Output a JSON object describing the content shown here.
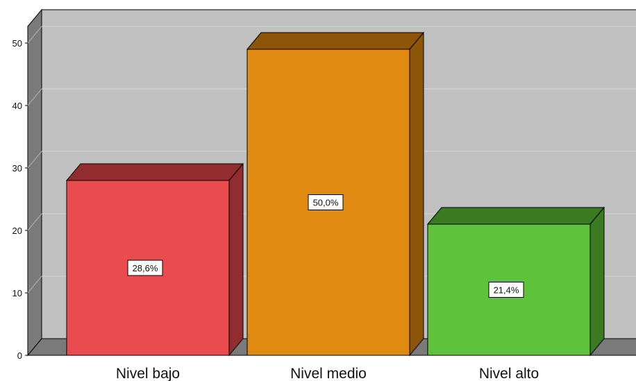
{
  "chart_data": {
    "type": "bar",
    "categories": [
      "Nivel bajo",
      "Nivel medio",
      "Nivel alto"
    ],
    "values": [
      28,
      49,
      21
    ],
    "data_labels": [
      "28,6%",
      "50,0%",
      "21,4%"
    ],
    "y_ticks": [
      "0",
      "10",
      "20",
      "30",
      "40",
      "50"
    ],
    "ylim": [
      0,
      50
    ],
    "grid": true,
    "style": "3d",
    "colors": {
      "bars": [
        "#ea4b4f",
        "#e08a12",
        "#5ec23a"
      ],
      "bar_tops": [
        "#912d2e",
        "#8c5507",
        "#3a7a21"
      ],
      "bar_sides": [
        "#912d2e",
        "#8c5507",
        "#3a7a21"
      ],
      "back_wall": "#c0c0c0",
      "left_wall": "#7a7a7a",
      "floor": "#7a7a7a",
      "grid": "#d6d6d6"
    }
  }
}
